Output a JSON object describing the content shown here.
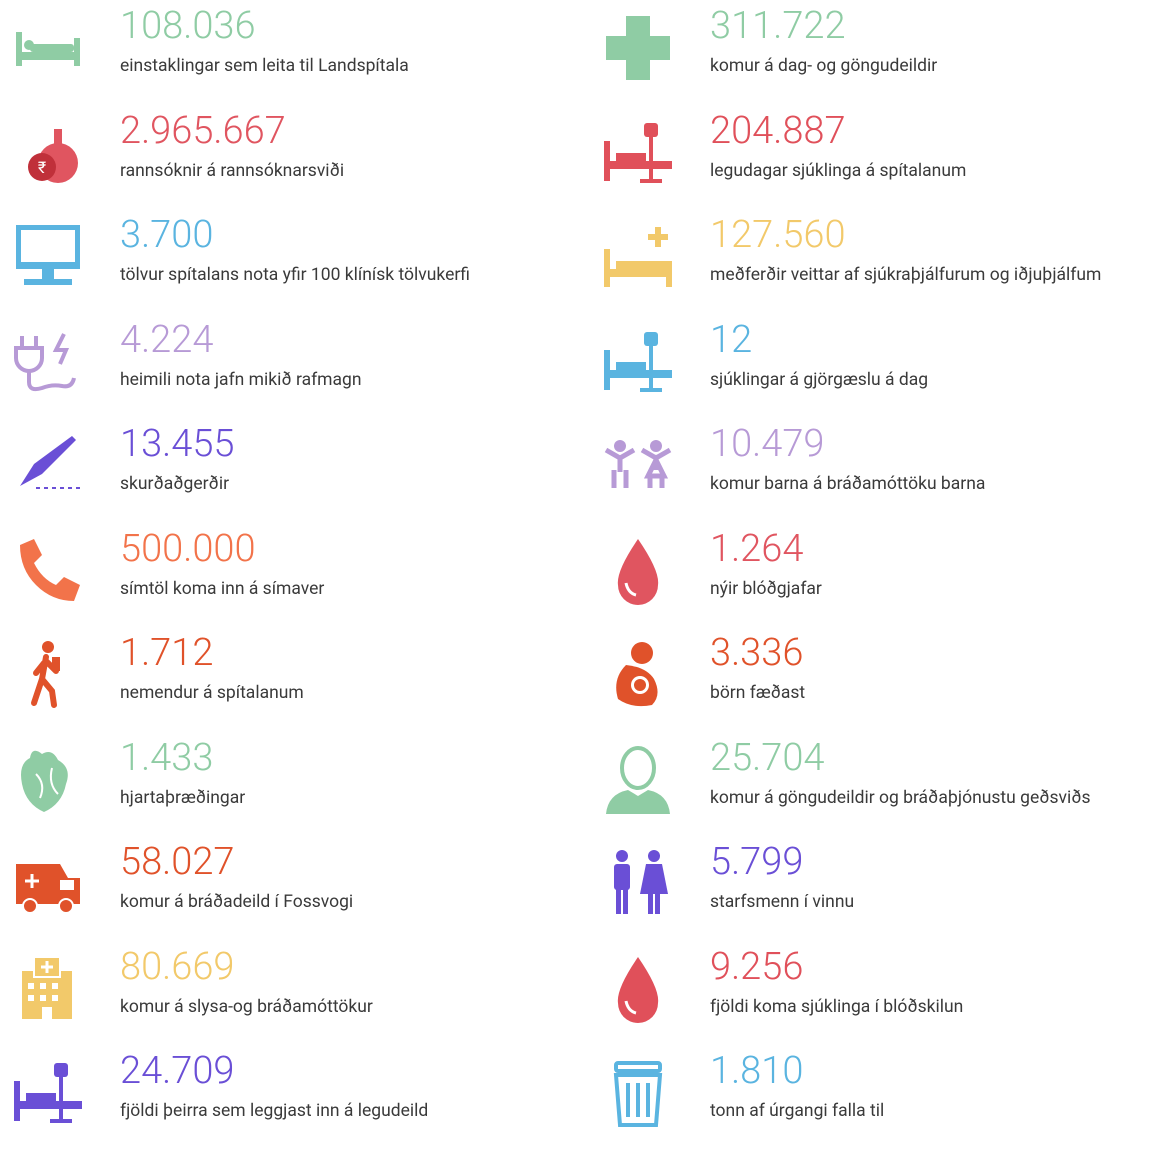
{
  "columns": [
    {
      "items": [
        {
          "value": "108.036",
          "label": "einstaklingar sem leita til Landspítala",
          "color": "#8fcca4"
        },
        {
          "value": "2.965.667",
          "label": "rannsóknir á rannsóknarsviði",
          "color": "#e05560"
        },
        {
          "value": "3.700",
          "label": "tölvur spítalans nota yfir 100 klínísk tölvukerfi",
          "color": "#5ab4e0"
        },
        {
          "value": "4.224",
          "label": "heimili nota jafn mikið rafmagn",
          "color": "#b79ad6"
        },
        {
          "value": "13.455",
          "label": "skurðaðgerðir",
          "color": "#6a4fd6"
        },
        {
          "value": "500.000",
          "label": "símtöl koma inn á símaver",
          "color": "#f2734a"
        },
        {
          "value": "1.712",
          "label": "nemendur á spítalanum",
          "color": "#e0522a"
        },
        {
          "value": "1.433",
          "label": "hjartaþræðingar",
          "color": "#8fcca4"
        },
        {
          "value": "58.027",
          "label": "komur á bráðadeild í Fossvogi",
          "color": "#e0522a"
        },
        {
          "value": "80.669",
          "label": "komur á slysa-og bráðamóttökur",
          "color": "#f2c96a"
        },
        {
          "value": "24.709",
          "label": "fjöldi þeirra sem leggjast inn á legudeild",
          "color": "#6a4fd6"
        }
      ]
    },
    {
      "items": [
        {
          "value": "311.722",
          "label": "komur á dag- og göngudeildir",
          "color": "#8fcca4"
        },
        {
          "value": "204.887",
          "label": "legudagar sjúklinga á spítalanum",
          "color": "#e0505a"
        },
        {
          "value": "127.560",
          "label": "meðferðir veittar af sjúkraþjálfurum og iðjuþjálfum",
          "color": "#f2c96a"
        },
        {
          "value": "12",
          "label": "sjúklingar á gjörgæslu á dag",
          "color": "#5ab4e0"
        },
        {
          "value": "10.479",
          "label": "komur barna á bráðamóttöku barna",
          "color": "#b79ad6"
        },
        {
          "value": "1.264",
          "label": "nýir blóðgjafar",
          "color": "#e05560"
        },
        {
          "value": "3.336",
          "label": "börn fæðast",
          "color": "#e0522a"
        },
        {
          "value": "25.704",
          "label": "komur á göngudeildir og bráðaþjónustu geðsviðs",
          "color": "#8fcca4"
        },
        {
          "value": "5.799",
          "label": "starfsmenn í vinnu",
          "color": "#6a4fd6"
        },
        {
          "value": "9.256",
          "label": "fjöldi koma sjúklinga í blóðskilun",
          "color": "#e0505a"
        },
        {
          "value": "1.810",
          "label": "tonn af úrgangi falla til",
          "color": "#5ab4e0"
        }
      ]
    }
  ]
}
